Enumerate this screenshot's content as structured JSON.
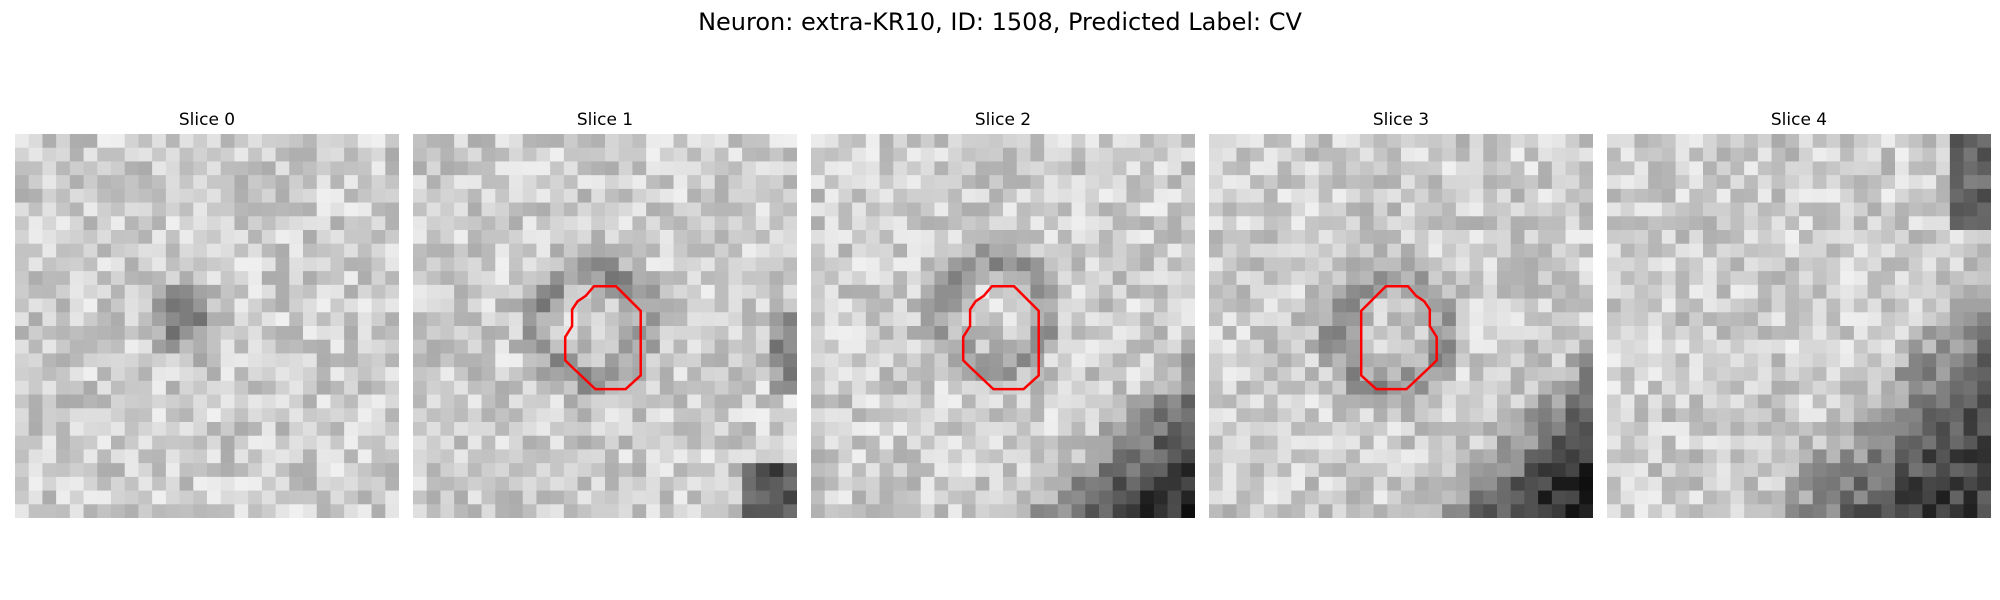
{
  "figure": {
    "suptitle": "Neuron: extra-KR10, ID: 1508, Predicted Label: CV"
  },
  "slices": [
    {
      "title": "Slice 0",
      "has_contour": false,
      "dark_center": [
        0.42,
        0.46
      ],
      "dark_corner": "none"
    },
    {
      "title": "Slice 1",
      "has_contour": true,
      "dark_center": [
        0.45,
        0.48
      ],
      "dark_corner": "bottom-right-small"
    },
    {
      "title": "Slice 2",
      "has_contour": true,
      "dark_center": [
        0.45,
        0.45
      ],
      "dark_corner": "bottom-right"
    },
    {
      "title": "Slice 3",
      "has_contour": true,
      "dark_center": [
        0.45,
        0.5
      ],
      "dark_corner": "bottom-right"
    },
    {
      "title": "Slice 4",
      "has_contour": false,
      "dark_center": [
        0.5,
        0.5
      ],
      "dark_corner": "right-bottom-large"
    }
  ],
  "colors": {
    "contour": "#ff0000"
  }
}
